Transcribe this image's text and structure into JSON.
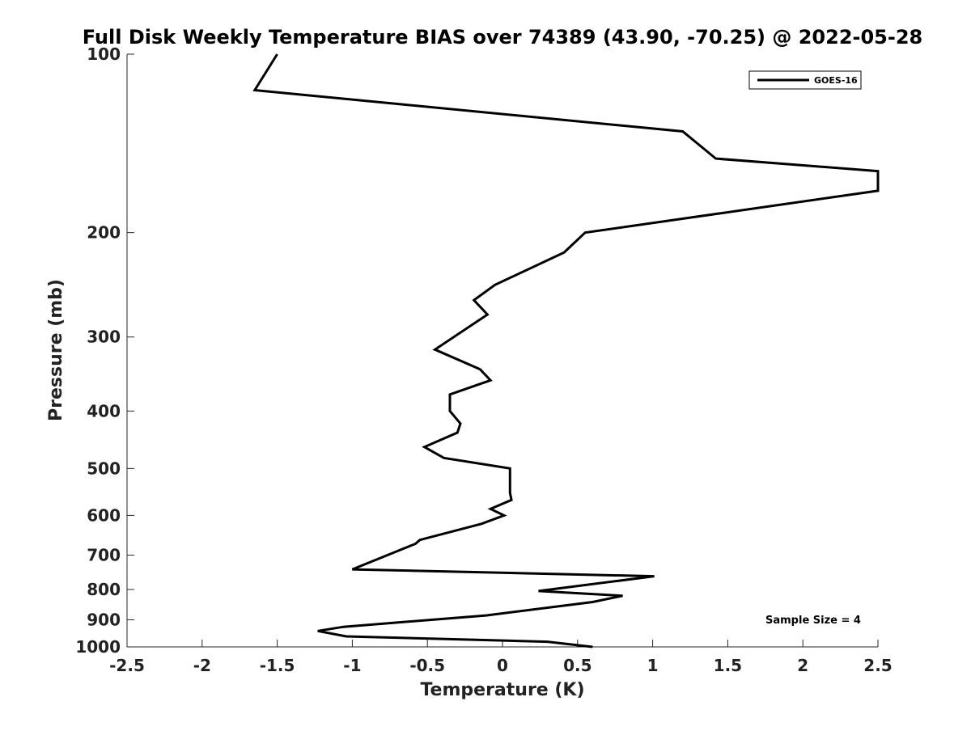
{
  "chart_data": {
    "type": "line",
    "title": "Full Disk Weekly Temperature BIAS over 74389 (43.90, -70.25) @ 2022-05-28",
    "xlabel": "Temperature (K)",
    "ylabel": "Pressure (mb)",
    "xlim": [
      -2.5,
      2.5
    ],
    "ylim": [
      100,
      1000
    ],
    "y_scale": "log",
    "y_reversed": true,
    "grid": false,
    "x_ticks": [
      -2.5,
      -2,
      -1.5,
      -1,
      -0.5,
      0,
      0.5,
      1,
      1.5,
      2,
      2.5
    ],
    "x_tick_labels": [
      "-2.5",
      "-2",
      "-1.5",
      "-1",
      "-0.5",
      "0",
      "0.5",
      "1",
      "1.5",
      "2",
      "2.5"
    ],
    "y_ticks": [
      100,
      200,
      300,
      400,
      500,
      600,
      700,
      800,
      900,
      1000
    ],
    "y_tick_labels": [
      "100",
      "200",
      "300",
      "400",
      "500",
      "600",
      "700",
      "800",
      "900",
      "1000"
    ],
    "legend_position": "top-right",
    "series": [
      {
        "name": "GOES-16",
        "color": "#000000",
        "points": [
          {
            "x": -1.5,
            "y": 100
          },
          {
            "x": -1.65,
            "y": 115
          },
          {
            "x": 1.2,
            "y": 135
          },
          {
            "x": 1.42,
            "y": 150
          },
          {
            "x": 2.5,
            "y": 157.5
          },
          {
            "x": 2.5,
            "y": 170
          },
          {
            "x": 0.55,
            "y": 200
          },
          {
            "x": 0.41,
            "y": 216
          },
          {
            "x": -0.05,
            "y": 245
          },
          {
            "x": -0.19,
            "y": 260
          },
          {
            "x": -0.1,
            "y": 275
          },
          {
            "x": -0.45,
            "y": 315
          },
          {
            "x": -0.15,
            "y": 340
          },
          {
            "x": -0.08,
            "y": 355
          },
          {
            "x": -0.35,
            "y": 375
          },
          {
            "x": -0.35,
            "y": 400
          },
          {
            "x": -0.28,
            "y": 420
          },
          {
            "x": -0.3,
            "y": 435
          },
          {
            "x": -0.52,
            "y": 460
          },
          {
            "x": -0.39,
            "y": 480
          },
          {
            "x": 0.05,
            "y": 500
          },
          {
            "x": 0.05,
            "y": 550
          },
          {
            "x": 0.06,
            "y": 565
          },
          {
            "x": -0.08,
            "y": 585
          },
          {
            "x": 0.01,
            "y": 600
          },
          {
            "x": -0.14,
            "y": 620
          },
          {
            "x": -0.55,
            "y": 660
          },
          {
            "x": -0.58,
            "y": 670
          },
          {
            "x": -1.0,
            "y": 740
          },
          {
            "x": 1.01,
            "y": 760
          },
          {
            "x": 0.24,
            "y": 805
          },
          {
            "x": 0.8,
            "y": 820
          },
          {
            "x": 0.6,
            "y": 840
          },
          {
            "x": -0.11,
            "y": 885
          },
          {
            "x": -1.06,
            "y": 925
          },
          {
            "x": -1.23,
            "y": 940
          },
          {
            "x": -1.04,
            "y": 960
          },
          {
            "x": 0.3,
            "y": 980
          },
          {
            "x": 0.6,
            "y": 1000
          }
        ]
      }
    ],
    "annotations": [
      {
        "text": "Sample Size = 4",
        "position": "bottom-right"
      }
    ]
  }
}
